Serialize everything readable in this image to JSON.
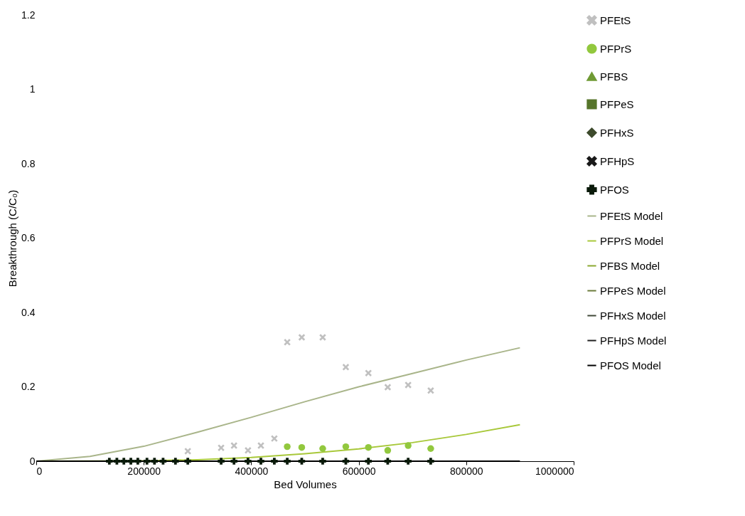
{
  "chart_data": {
    "type": "scatter",
    "xlabel": "Bed Volumes",
    "ylabel": "Breakthrough (C/C₀)",
    "xlim": [
      0,
      1000000
    ],
    "xticks": [
      0,
      200000,
      400000,
      600000,
      800000,
      1000000
    ],
    "ylim": [
      0,
      1.2
    ],
    "yticks": [
      0,
      0.2,
      0.4,
      0.6,
      0.8,
      1,
      1.2
    ],
    "grid": false,
    "legend": "right",
    "series": [
      {
        "name": "PFEtS",
        "type": "scatter",
        "marker": "x",
        "color": "#c0c0c0",
        "x": [
          282000,
          344000,
          368000,
          394000,
          418000,
          443000,
          467000,
          494000,
          533000,
          576000,
          618000,
          654000,
          692000,
          734000
        ],
        "values": [
          0.027,
          0.036,
          0.042,
          0.029,
          0.042,
          0.061,
          0.32,
          0.333,
          0.333,
          0.253,
          0.237,
          0.199,
          0.205,
          0.19
        ]
      },
      {
        "name": "PFPrS",
        "type": "scatter",
        "marker": "circle",
        "color": "#92c83e",
        "x": [
          467000,
          494000,
          533000,
          576000,
          618000,
          654000,
          692000,
          734000
        ],
        "values": [
          0.039,
          0.037,
          0.034,
          0.039,
          0.037,
          0.029,
          0.042,
          0.034
        ]
      },
      {
        "name": "PFBS",
        "type": "scatter",
        "marker": "triangle",
        "color": "#6f9a34"
      },
      {
        "name": "PFPeS",
        "type": "scatter",
        "marker": "square",
        "color": "#56752b"
      },
      {
        "name": "PFHxS",
        "type": "scatter",
        "marker": "diamond",
        "color": "#3d4a2c"
      },
      {
        "name": "PFHpS",
        "type": "scatter",
        "marker": "x",
        "color": "#1a1a1a"
      },
      {
        "name": "PFOS",
        "type": "scatter",
        "marker": "cross",
        "color": "#0a1a0a",
        "x": [
          136000,
          150000,
          163000,
          176000,
          189000,
          206000,
          220000,
          236000,
          259000,
          282000,
          344000,
          368000,
          394000,
          418000,
          443000,
          467000,
          494000,
          533000,
          576000,
          618000,
          654000,
          692000,
          734000
        ],
        "values": [
          0,
          0,
          0,
          0,
          0,
          0,
          0,
          0,
          0,
          0,
          0,
          0,
          0,
          0,
          0,
          0,
          0,
          0,
          0,
          0,
          0,
          0,
          0
        ]
      },
      {
        "name": "PFEtS Model",
        "type": "line",
        "color": "#a9b58a",
        "x": [
          0,
          100000,
          200000,
          300000,
          400000,
          500000,
          600000,
          700000,
          800000,
          900000
        ],
        "values": [
          0,
          0.013,
          0.04,
          0.078,
          0.118,
          0.16,
          0.2,
          0.236,
          0.272,
          0.305
        ]
      },
      {
        "name": "PFPrS Model",
        "type": "line",
        "color": "#a8c83a",
        "x": [
          0,
          200000,
          300000,
          400000,
          500000,
          600000,
          700000,
          800000,
          900000
        ],
        "values": [
          0,
          0.001,
          0.004,
          0.01,
          0.02,
          0.033,
          0.05,
          0.072,
          0.098
        ]
      },
      {
        "name": "PFBS Model",
        "type": "line",
        "color": "#8aa830"
      },
      {
        "name": "PFPeS Model",
        "type": "line",
        "color": "#6b7b3a"
      },
      {
        "name": "PFHxS Model",
        "type": "line",
        "color": "#404838"
      },
      {
        "name": "PFHpS Model",
        "type": "line",
        "color": "#202020"
      },
      {
        "name": "PFOS Model",
        "type": "line",
        "color": "#000000",
        "x": [
          0,
          900000
        ],
        "values": [
          0,
          0
        ]
      }
    ]
  }
}
